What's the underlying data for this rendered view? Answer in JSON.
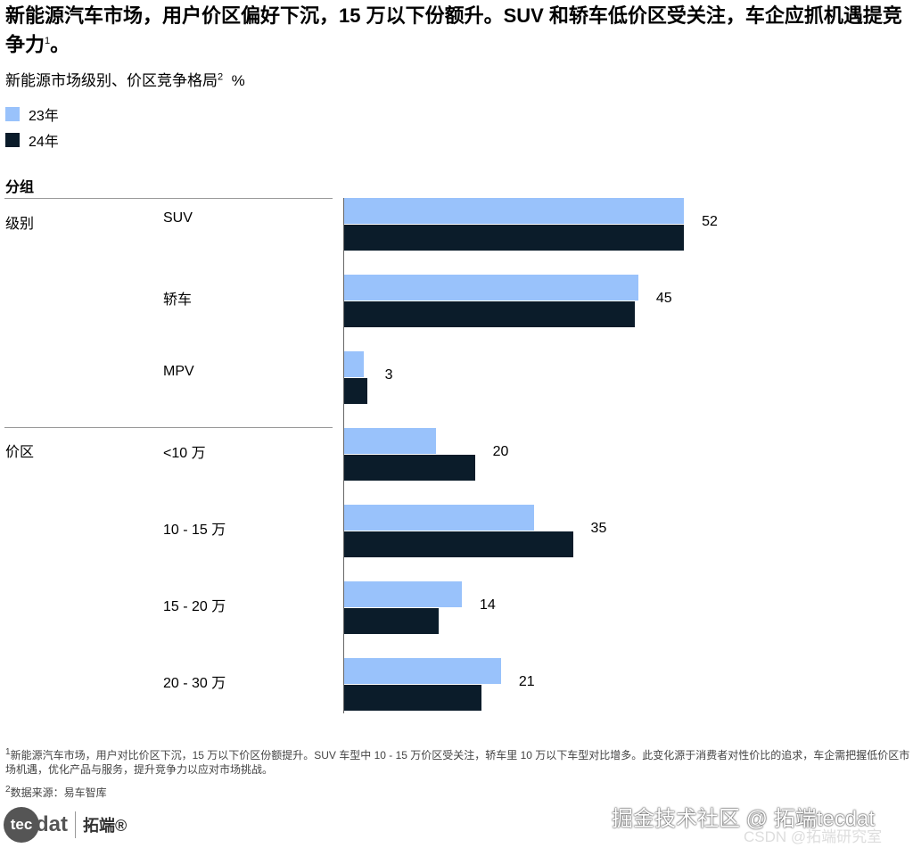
{
  "title": "新能源汽车市场，用户价区偏好下沉，15 万以下份额升。SUV 和轿车低价区受关注，车企应抓机遇提竞争力",
  "title_sup": "1",
  "subtitle": "新能源市场级别、价区竞争格局",
  "subtitle_sup": "2",
  "unit": "%",
  "colors": {
    "y23": "#99c2fb",
    "y24": "#0b1c2a"
  },
  "chart_data": {
    "type": "bar",
    "orientation": "horizontal",
    "title": "新能源市场级别、价区竞争格局",
    "unit": "%",
    "legend": [
      "23年",
      "24年"
    ],
    "legend_position": "top-left",
    "group_header": "分组",
    "groups": [
      {
        "name": "级别",
        "categories": [
          "SUV",
          "轿车",
          "MPV"
        ]
      },
      {
        "name": "价区",
        "categories": [
          "<10 万",
          "10 - 15 万",
          "15 - 20 万",
          "20 - 30 万"
        ]
      }
    ],
    "categories": [
      "SUV",
      "轿车",
      "MPV",
      "<10 万",
      "10 - 15 万",
      "15 - 20 万",
      "20 - 30 万"
    ],
    "series": [
      {
        "name": "23年",
        "values": [
          52,
          45,
          3,
          14,
          29,
          18,
          24
        ]
      },
      {
        "name": "24年",
        "values": [
          52,
          44.5,
          3.5,
          20,
          35,
          14.5,
          21
        ]
      }
    ],
    "data_labels": [
      "52",
      "45",
      "3",
      "20",
      "35",
      "14",
      "21"
    ],
    "xlim": [
      0,
      60
    ],
    "grid": false
  },
  "footnotes": [
    "新能源汽车市场，用户对比价区下沉，15 万以下价区份额提升。SUV 车型中 10 - 15 万价区受关注，轿车里 10 万以下车型对比增多。此变化源于消费者对性价比的追求，车企需把握低价区市场机遇，优化产品与服务，提升竞争力以应对市场挑战。",
    "数据来源：易车智库"
  ],
  "logo": {
    "brand": "tecdat",
    "cn": "拓端®"
  },
  "watermarks": [
    "掘金技术社区 @ 拓端tecdat",
    "CSDN @拓端研究室"
  ]
}
